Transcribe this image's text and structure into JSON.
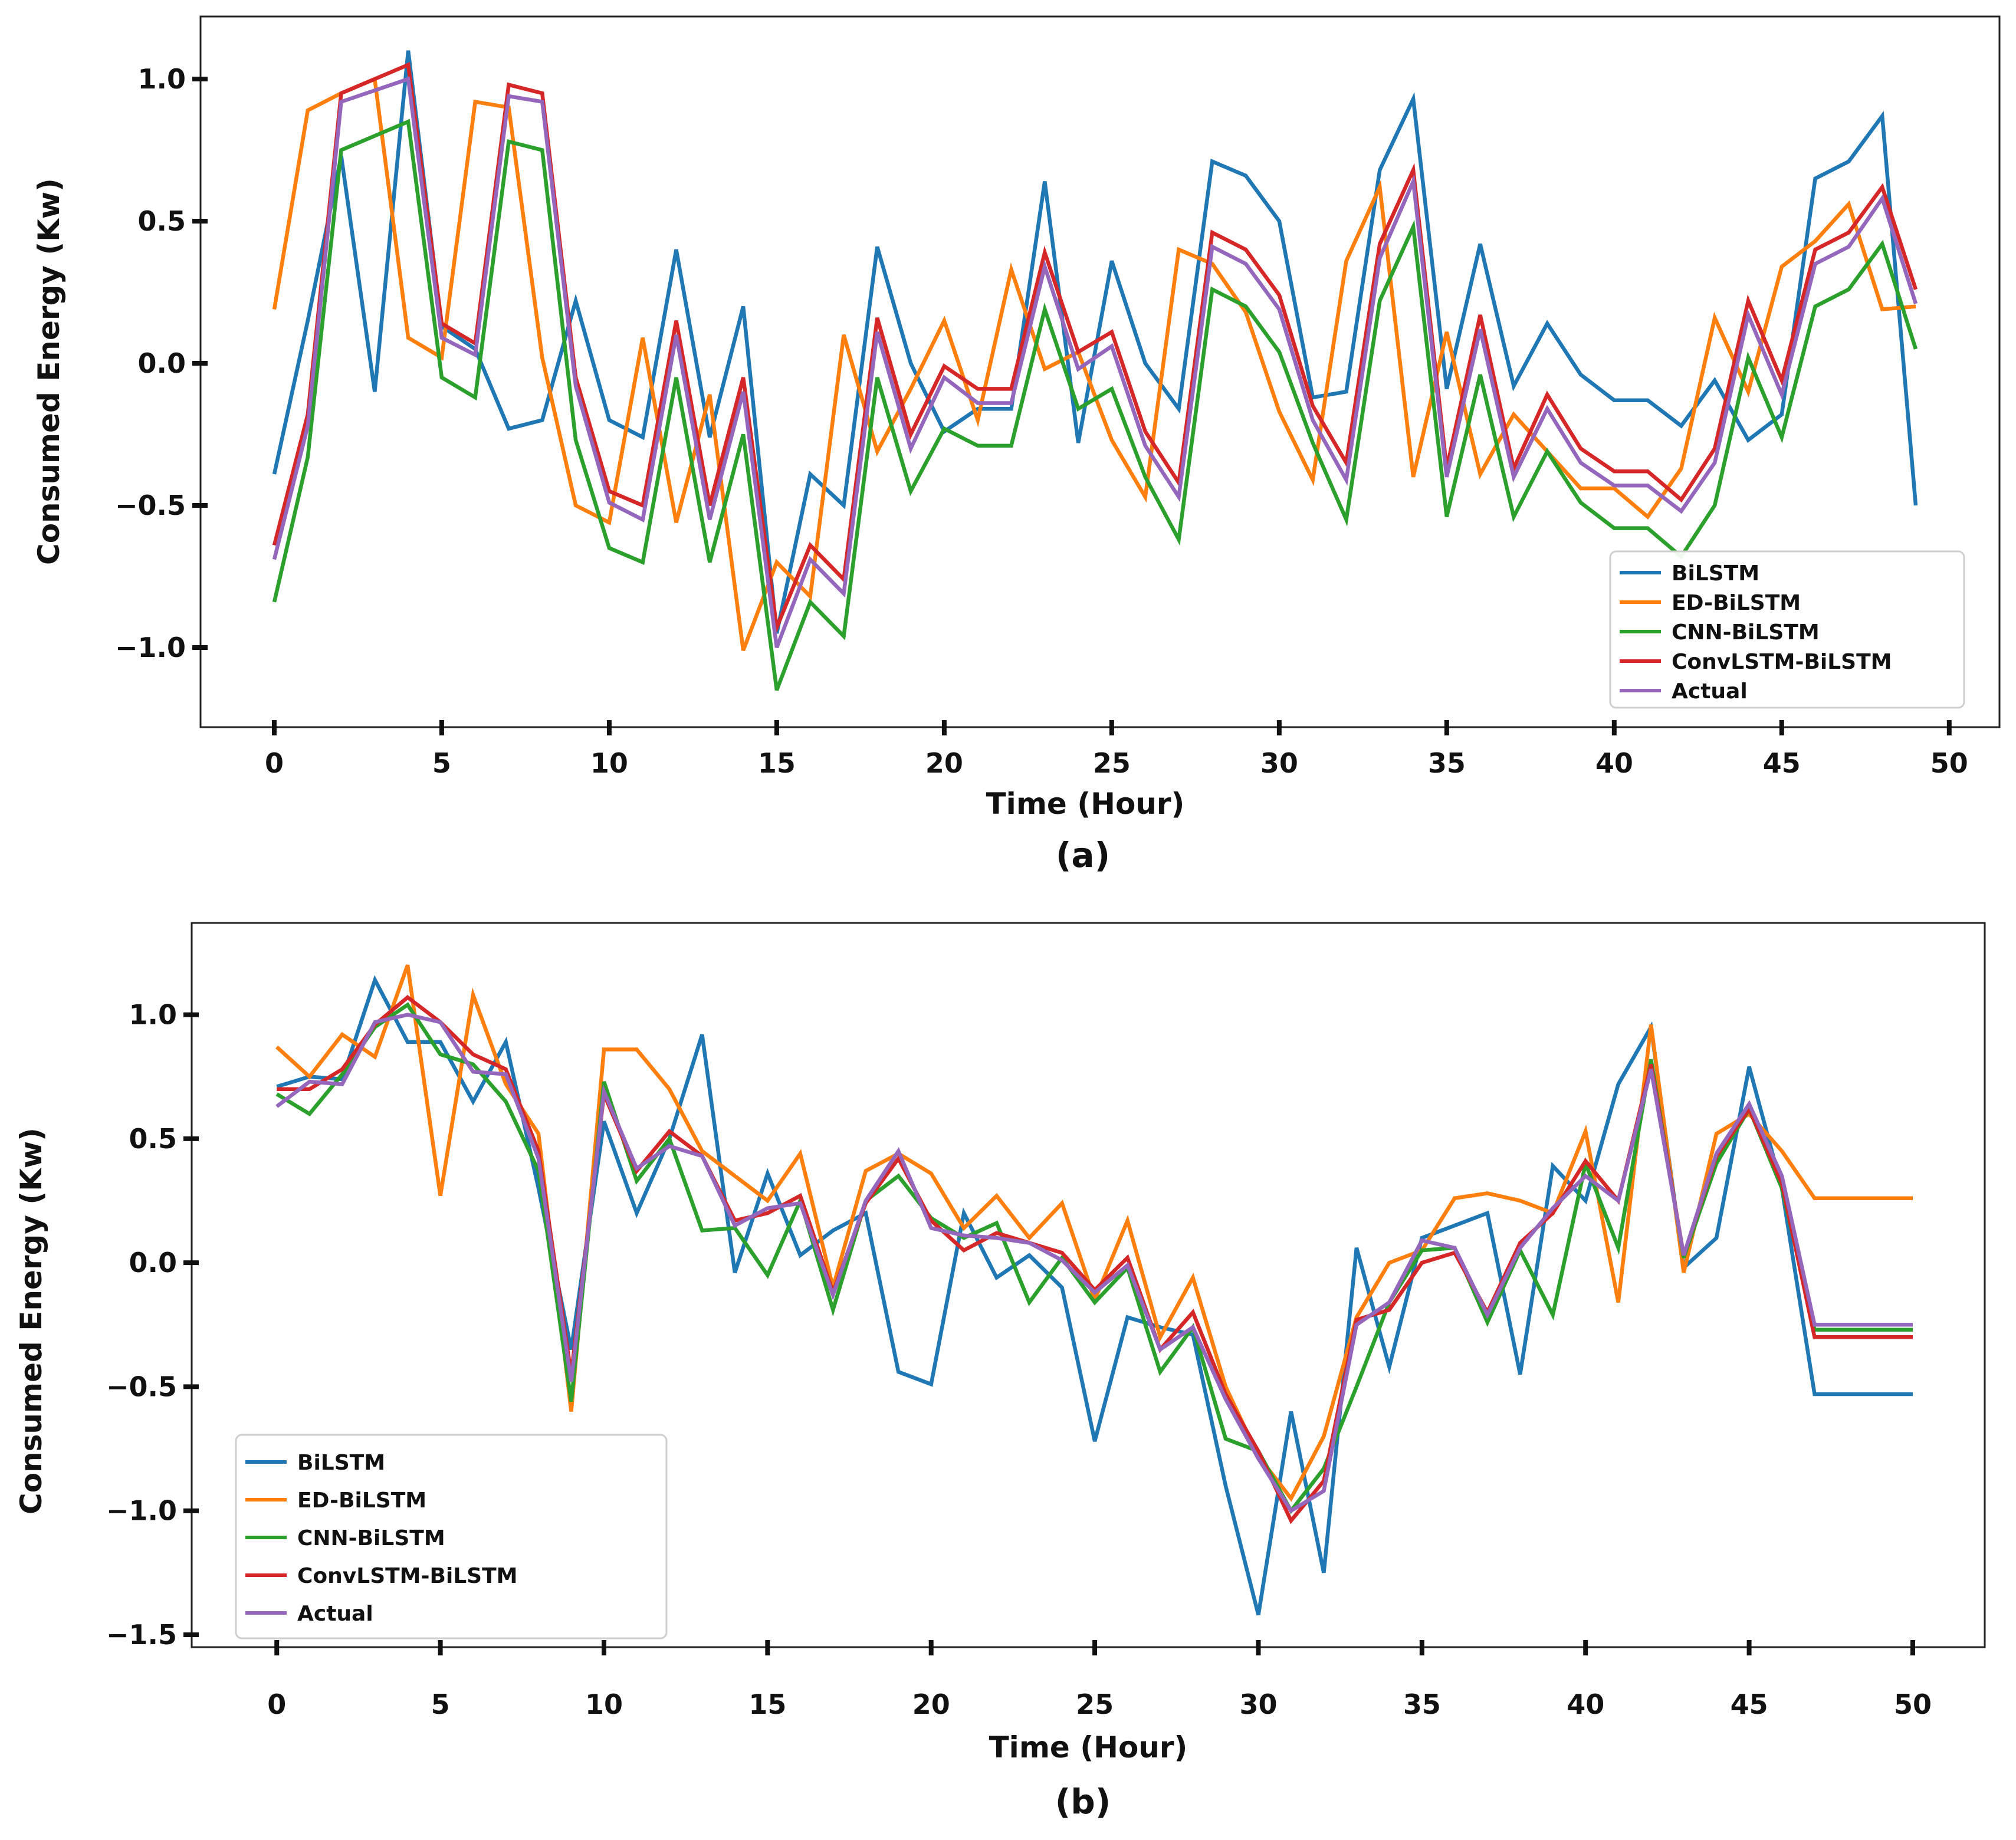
{
  "colors": {
    "BiLSTM": "#1f77b4",
    "ED-BiLSTM": "#ff7f0e",
    "CNN-BiLSTM": "#2ca02c",
    "ConvLSTM-BiLSTM": "#d62728",
    "Actual": "#9467bd"
  },
  "chart_data": [
    {
      "type": "line",
      "panel_label": "(a)",
      "xlabel": "Time (Hour)",
      "ylabel": "Consumed Energy (Kw)",
      "xlim": [
        -2.2,
        51.5
      ],
      "ylim": [
        -1.28,
        1.22
      ],
      "xticks": [
        0,
        5,
        10,
        15,
        20,
        25,
        30,
        35,
        40,
        45,
        50
      ],
      "yticks": [
        1.0,
        0.5,
        0.0,
        -0.5,
        -1.0
      ],
      "ytick_labels": [
        "1.0",
        "0.5",
        "0.0",
        "−0.5",
        "−1.0"
      ],
      "legend_position": "lower-right",
      "series": [
        {
          "name": "BiLSTM",
          "x": [
            0,
            1,
            2,
            3,
            4,
            5,
            6,
            7,
            8,
            9,
            10,
            11,
            12,
            13,
            14,
            15,
            16,
            17,
            18,
            19,
            20,
            21,
            22,
            23,
            24,
            25,
            26,
            27,
            28,
            29,
            30,
            31,
            32,
            33,
            34,
            35,
            36,
            37,
            38,
            39,
            40,
            41,
            42,
            43,
            44,
            45,
            46,
            47,
            48,
            49
          ],
          "values": [
            -0.39,
            0.15,
            0.73,
            -0.1,
            1.1,
            0.13,
            0.05,
            -0.23,
            -0.2,
            0.22,
            -0.2,
            -0.26,
            0.4,
            -0.26,
            0.2,
            -0.95,
            -0.39,
            -0.5,
            0.41,
            0.0,
            -0.24,
            -0.16,
            -0.16,
            0.64,
            -0.28,
            0.36,
            0.0,
            -0.16,
            0.71,
            0.66,
            0.5,
            -0.12,
            -0.1,
            0.68,
            0.93,
            -0.09,
            0.42,
            -0.08,
            0.14,
            -0.04,
            -0.13,
            -0.13,
            -0.22,
            -0.06,
            -0.27,
            -0.18,
            0.65,
            0.71,
            0.87,
            -0.5
          ]
        },
        {
          "name": "ED-BiLSTM",
          "x": [
            0,
            1,
            2,
            3,
            4,
            5,
            6,
            7,
            8,
            9,
            10,
            11,
            12,
            13,
            14,
            15,
            16,
            17,
            18,
            19,
            20,
            21,
            22,
            23,
            24,
            25,
            26,
            27,
            28,
            29,
            30,
            31,
            32,
            33,
            34,
            35,
            36,
            37,
            38,
            39,
            40,
            41,
            42,
            43,
            44,
            45,
            46,
            47,
            48,
            49
          ],
          "values": [
            0.19,
            0.89,
            0.95,
            1.0,
            0.09,
            0.02,
            0.92,
            0.9,
            0.02,
            -0.5,
            -0.56,
            0.09,
            -0.56,
            -0.11,
            -1.01,
            -0.7,
            -0.82,
            0.1,
            -0.31,
            -0.09,
            0.15,
            -0.2,
            0.33,
            -0.02,
            0.04,
            -0.27,
            -0.47,
            0.4,
            0.35,
            0.18,
            -0.17,
            -0.41,
            0.36,
            0.62,
            -0.4,
            0.11,
            -0.39,
            -0.18,
            -0.31,
            -0.44,
            -0.44,
            -0.54,
            -0.37,
            0.16,
            -0.1,
            0.34,
            0.43,
            0.56,
            0.19,
            0.2
          ]
        },
        {
          "name": "CNN-BiLSTM",
          "x": [
            0,
            1,
            2,
            3,
            4,
            5,
            6,
            7,
            8,
            9,
            10,
            11,
            12,
            13,
            14,
            15,
            16,
            17,
            18,
            19,
            20,
            21,
            22,
            23,
            24,
            25,
            26,
            27,
            28,
            29,
            30,
            31,
            32,
            33,
            34,
            35,
            36,
            37,
            38,
            39,
            40,
            41,
            42,
            43,
            44,
            45,
            46,
            47,
            48,
            49
          ],
          "values": [
            -0.84,
            -0.33,
            0.75,
            0.8,
            0.85,
            -0.05,
            -0.12,
            0.78,
            0.75,
            -0.27,
            -0.65,
            -0.7,
            -0.05,
            -0.7,
            -0.25,
            -1.15,
            -0.84,
            -0.96,
            -0.05,
            -0.45,
            -0.23,
            -0.29,
            -0.29,
            0.19,
            -0.16,
            -0.09,
            -0.4,
            -0.62,
            0.26,
            0.2,
            0.04,
            -0.28,
            -0.55,
            0.22,
            0.48,
            -0.54,
            -0.04,
            -0.54,
            -0.31,
            -0.49,
            -0.58,
            -0.58,
            -0.68,
            -0.5,
            0.02,
            -0.26,
            0.2,
            0.26,
            0.42,
            0.05
          ]
        },
        {
          "name": "ConvLSTM-BiLSTM",
          "x": [
            0,
            1,
            2,
            3,
            4,
            5,
            6,
            7,
            8,
            9,
            10,
            11,
            12,
            13,
            14,
            15,
            16,
            17,
            18,
            19,
            20,
            21,
            22,
            23,
            24,
            25,
            26,
            27,
            28,
            29,
            30,
            31,
            32,
            33,
            34,
            35,
            36,
            37,
            38,
            39,
            40,
            41,
            42,
            43,
            44,
            45,
            46,
            47,
            48,
            49
          ],
          "values": [
            -0.64,
            -0.18,
            0.95,
            1.0,
            1.05,
            0.14,
            0.07,
            0.98,
            0.95,
            -0.05,
            -0.45,
            -0.5,
            0.15,
            -0.5,
            -0.05,
            -0.93,
            -0.64,
            -0.76,
            0.16,
            -0.25,
            -0.01,
            -0.09,
            -0.09,
            0.39,
            0.04,
            0.11,
            -0.24,
            -0.42,
            0.46,
            0.4,
            0.24,
            -0.15,
            -0.35,
            0.42,
            0.68,
            -0.37,
            0.17,
            -0.37,
            -0.11,
            -0.3,
            -0.38,
            -0.38,
            -0.48,
            -0.3,
            0.22,
            -0.06,
            0.4,
            0.46,
            0.62,
            0.26
          ]
        },
        {
          "name": "Actual",
          "x": [
            0,
            1,
            2,
            3,
            4,
            5,
            6,
            7,
            8,
            9,
            10,
            11,
            12,
            13,
            14,
            15,
            16,
            17,
            18,
            19,
            20,
            21,
            22,
            23,
            24,
            25,
            26,
            27,
            28,
            29,
            30,
            31,
            32,
            33,
            34,
            35,
            36,
            37,
            38,
            39,
            40,
            41,
            42,
            43,
            44,
            45,
            46,
            47,
            48,
            49
          ],
          "values": [
            -0.69,
            -0.22,
            0.92,
            0.96,
            1.0,
            0.09,
            0.03,
            0.94,
            0.92,
            -0.08,
            -0.49,
            -0.55,
            0.1,
            -0.55,
            -0.1,
            -1.0,
            -0.69,
            -0.81,
            0.11,
            -0.3,
            -0.05,
            -0.14,
            -0.14,
            0.34,
            -0.02,
            0.06,
            -0.29,
            -0.47,
            0.41,
            0.35,
            0.19,
            -0.2,
            -0.41,
            0.37,
            0.64,
            -0.4,
            0.12,
            -0.4,
            -0.16,
            -0.35,
            -0.43,
            -0.43,
            -0.52,
            -0.35,
            0.17,
            -0.11,
            0.35,
            0.41,
            0.58,
            0.21
          ]
        }
      ]
    },
    {
      "type": "line",
      "panel_label": "(b)",
      "xlabel": "Time (Hour)",
      "ylabel": "Consumed Energy (Kw)",
      "xlim": [
        -2.6,
        52.2
      ],
      "ylim": [
        -1.55,
        1.37
      ],
      "xticks": [
        0,
        5,
        10,
        15,
        20,
        25,
        30,
        35,
        40,
        45,
        50
      ],
      "yticks": [
        1.0,
        0.5,
        0.0,
        -0.5,
        -1.0,
        -1.5
      ],
      "ytick_labels": [
        "1.0",
        "0.5",
        "0.0",
        "−0.5",
        "−1.0",
        "−1.5"
      ],
      "legend_position": "lower-left",
      "series": [
        {
          "name": "BiLSTM",
          "x": [
            0,
            1,
            2,
            3,
            4,
            5,
            6,
            7,
            8,
            9,
            10,
            11,
            12,
            13,
            14,
            15,
            16,
            17,
            18,
            19,
            20,
            21,
            22,
            23,
            24,
            25,
            26,
            27,
            28,
            29,
            30,
            31,
            32,
            33,
            34,
            35,
            36,
            37,
            38,
            39,
            40,
            41,
            42,
            43,
            44,
            45,
            46,
            47,
            48,
            49,
            50
          ],
          "values": [
            0.71,
            0.75,
            0.74,
            1.14,
            0.89,
            0.89,
            0.65,
            0.89,
            0.3,
            -0.35,
            0.57,
            0.2,
            0.5,
            0.92,
            -0.04,
            0.36,
            0.03,
            0.13,
            0.2,
            -0.44,
            -0.49,
            0.2,
            -0.06,
            0.03,
            -0.1,
            -0.72,
            -0.22,
            -0.26,
            -0.29,
            -0.9,
            -1.42,
            -0.6,
            -1.25,
            0.06,
            -0.42,
            0.1,
            0.15,
            0.2,
            -0.45,
            0.39,
            0.25,
            0.72,
            0.95,
            -0.02,
            0.1,
            0.79,
            0.3,
            -0.53,
            -0.53,
            -0.53,
            -0.53
          ]
        },
        {
          "name": "ED-BiLSTM",
          "x": [
            0,
            1,
            2,
            3,
            4,
            5,
            6,
            7,
            8,
            9,
            10,
            11,
            12,
            13,
            14,
            15,
            16,
            17,
            18,
            19,
            20,
            21,
            22,
            23,
            24,
            25,
            26,
            27,
            28,
            29,
            30,
            31,
            32,
            33,
            34,
            35,
            36,
            37,
            38,
            39,
            40,
            41,
            42,
            43,
            44,
            45,
            46,
            47,
            48,
            49,
            50
          ],
          "values": [
            0.87,
            0.75,
            0.92,
            0.83,
            1.2,
            0.27,
            1.08,
            0.72,
            0.52,
            -0.6,
            0.86,
            0.86,
            0.7,
            0.45,
            0.35,
            0.25,
            0.44,
            -0.1,
            0.37,
            0.44,
            0.36,
            0.14,
            0.27,
            0.1,
            0.24,
            -0.15,
            0.17,
            -0.3,
            -0.06,
            -0.5,
            -0.78,
            -0.95,
            -0.7,
            -0.22,
            0.0,
            0.05,
            0.26,
            0.28,
            0.25,
            0.2,
            0.53,
            -0.16,
            0.96,
            -0.04,
            0.52,
            0.6,
            0.45,
            0.26,
            0.26,
            0.26,
            0.26
          ]
        },
        {
          "name": "CNN-BiLSTM",
          "x": [
            0,
            1,
            2,
            3,
            4,
            5,
            6,
            7,
            8,
            9,
            10,
            11,
            12,
            13,
            14,
            15,
            16,
            17,
            18,
            19,
            20,
            21,
            22,
            23,
            24,
            25,
            26,
            27,
            28,
            29,
            30,
            31,
            32,
            33,
            34,
            35,
            36,
            37,
            38,
            39,
            40,
            41,
            42,
            43,
            44,
            45,
            46,
            47,
            48,
            49,
            50
          ],
          "values": [
            0.68,
            0.6,
            0.76,
            0.95,
            1.04,
            0.84,
            0.8,
            0.65,
            0.37,
            -0.56,
            0.73,
            0.33,
            0.5,
            0.13,
            0.14,
            -0.05,
            0.25,
            -0.19,
            0.25,
            0.35,
            0.18,
            0.1,
            0.16,
            -0.16,
            0.02,
            -0.16,
            -0.02,
            -0.44,
            -0.26,
            -0.71,
            -0.76,
            -1.0,
            -0.83,
            -0.5,
            -0.16,
            0.05,
            0.06,
            -0.24,
            0.05,
            -0.21,
            0.4,
            0.06,
            0.82,
            0.02,
            0.4,
            0.62,
            0.3,
            -0.27,
            -0.27,
            -0.27,
            -0.27
          ]
        },
        {
          "name": "ConvLSTM-BiLSTM",
          "x": [
            0,
            1,
            2,
            3,
            4,
            5,
            6,
            7,
            8,
            9,
            10,
            11,
            12,
            13,
            14,
            15,
            16,
            17,
            18,
            19,
            20,
            21,
            22,
            23,
            24,
            25,
            26,
            27,
            28,
            29,
            30,
            31,
            32,
            33,
            34,
            35,
            36,
            37,
            38,
            39,
            40,
            41,
            42,
            43,
            44,
            45,
            46,
            47,
            48,
            49,
            50
          ],
          "values": [
            0.7,
            0.7,
            0.78,
            0.96,
            1.07,
            0.97,
            0.84,
            0.78,
            0.45,
            -0.45,
            0.68,
            0.37,
            0.53,
            0.43,
            0.17,
            0.2,
            0.27,
            -0.12,
            0.24,
            0.42,
            0.17,
            0.05,
            0.12,
            0.08,
            0.04,
            -0.11,
            0.02,
            -0.35,
            -0.2,
            -0.53,
            -0.76,
            -1.04,
            -0.88,
            -0.23,
            -0.19,
            0.0,
            0.04,
            -0.2,
            0.08,
            0.2,
            0.41,
            0.25,
            0.8,
            0.03,
            0.43,
            0.62,
            0.32,
            -0.3,
            -0.3,
            -0.3,
            -0.3
          ]
        },
        {
          "name": "Actual",
          "x": [
            0,
            1,
            2,
            3,
            4,
            5,
            6,
            7,
            8,
            9,
            10,
            11,
            12,
            13,
            14,
            15,
            16,
            17,
            18,
            19,
            20,
            21,
            22,
            23,
            24,
            25,
            26,
            27,
            28,
            29,
            30,
            31,
            32,
            33,
            34,
            35,
            36,
            37,
            38,
            39,
            40,
            41,
            42,
            43,
            44,
            45,
            46,
            47,
            48,
            49,
            50
          ],
          "values": [
            0.63,
            0.73,
            0.72,
            0.97,
            1.0,
            0.97,
            0.77,
            0.76,
            0.42,
            -0.48,
            0.69,
            0.38,
            0.47,
            0.43,
            0.15,
            0.22,
            0.24,
            -0.13,
            0.25,
            0.45,
            0.14,
            0.11,
            0.1,
            0.08,
            0.01,
            -0.12,
            -0.01,
            -0.35,
            -0.26,
            -0.55,
            -0.79,
            -1.0,
            -0.92,
            -0.25,
            -0.16,
            0.09,
            0.06,
            -0.21,
            0.06,
            0.22,
            0.35,
            0.25,
            0.78,
            0.03,
            0.44,
            0.64,
            0.35,
            -0.25,
            -0.25,
            -0.25,
            -0.25
          ]
        }
      ]
    }
  ]
}
